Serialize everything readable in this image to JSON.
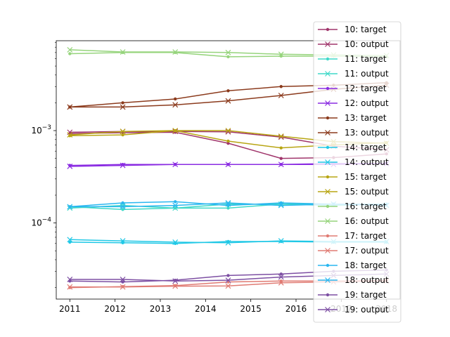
{
  "chart_data": {
    "type": "line",
    "title": "",
    "xlabel": "",
    "ylabel": "",
    "x_scale": "linear",
    "y_scale": "log",
    "xlim": [
      2010.7,
      2018.3
    ],
    "ylim": [
      1.5e-05,
      0.0094
    ],
    "grid": false,
    "legend_position": "right",
    "x_ticks": [
      2011,
      2012,
      2013,
      2014,
      2015,
      2016,
      2017,
      2018
    ],
    "x_tick_labels": [
      "2011",
      "2012",
      "2013",
      "2014",
      "2015",
      "2016",
      "2017",
      "2018"
    ],
    "y_ticks": [
      0.0001,
      0.001
    ],
    "y_tick_labels": [
      {
        "base": "10",
        "exp": "−4"
      },
      {
        "base": "10",
        "exp": "−3"
      }
    ],
    "x": [
      2011.0,
      2012.17,
      2013.33,
      2014.5,
      2015.67,
      2016.83,
      2018.0
    ],
    "series": [
      {
        "name": "10: target",
        "color": "#a0356b",
        "marker": "dot",
        "values": [
          0.00093,
          0.00095,
          0.00096,
          0.00073,
          0.0005,
          0.00051,
          0.00056
        ]
      },
      {
        "name": "10: output",
        "color": "#a0356b",
        "marker": "x",
        "values": [
          0.00096,
          0.00098,
          0.00098,
          0.00097,
          0.00085,
          0.00068,
          0.00062
        ]
      },
      {
        "name": "11: target",
        "color": "#3fd9c8",
        "marker": "dot",
        "values": [
          0.00015,
          0.00014,
          0.000145,
          0.000145,
          0.00016,
          0.000155,
          0.00016
        ]
      },
      {
        "name": "11: output",
        "color": "#3fd9c8",
        "marker": "x",
        "values": [
          0.000145,
          0.000155,
          0.000145,
          0.00016,
          0.00016,
          0.00016,
          0.000155
        ]
      },
      {
        "name": "12: target",
        "color": "#8a2be2",
        "marker": "dot",
        "values": [
          0.00042,
          0.00043,
          0.00043,
          0.00043,
          0.00043,
          0.00044,
          0.00044
        ]
      },
      {
        "name": "12: output",
        "color": "#8a2be2",
        "marker": "x",
        "values": [
          0.00041,
          0.00042,
          0.00043,
          0.00043,
          0.00043,
          0.00043,
          0.00044
        ]
      },
      {
        "name": "13: target",
        "color": "#8b3a1c",
        "marker": "dot",
        "values": [
          0.0018,
          0.002,
          0.0022,
          0.0027,
          0.003,
          0.0031,
          0.0033
        ]
      },
      {
        "name": "13: output",
        "color": "#8b3a1c",
        "marker": "x",
        "values": [
          0.0018,
          0.0018,
          0.0019,
          0.0021,
          0.0024,
          0.0028,
          0.0031
        ]
      },
      {
        "name": "14: target",
        "color": "#20c8e6",
        "marker": "dot",
        "values": [
          6.2e-05,
          6.1e-05,
          6e-05,
          6.3e-05,
          6.3e-05,
          6.2e-05,
          6.2e-05
        ]
      },
      {
        "name": "14: output",
        "color": "#20c8e6",
        "marker": "x",
        "values": [
          6.6e-05,
          6.4e-05,
          6.2e-05,
          6.1e-05,
          6.4e-05,
          6.3e-05,
          6.3e-05
        ]
      },
      {
        "name": "15: target",
        "color": "#b8a513",
        "marker": "dot",
        "values": [
          0.00088,
          0.0009,
          0.001,
          0.00077,
          0.00065,
          0.0007,
          0.00074
        ]
      },
      {
        "name": "15: output",
        "color": "#b8a513",
        "marker": "x",
        "values": [
          0.0009,
          0.00098,
          0.001,
          0.001,
          0.00087,
          0.00076,
          0.00073
        ]
      },
      {
        "name": "16: target",
        "color": "#96d47c",
        "marker": "dot",
        "values": [
          0.0068,
          0.007,
          0.007,
          0.0063,
          0.0064,
          0.0064,
          0.0063
        ]
      },
      {
        "name": "16: output",
        "color": "#96d47c",
        "marker": "x",
        "values": [
          0.0075,
          0.0071,
          0.0071,
          0.007,
          0.0067,
          0.0066,
          0.0065
        ]
      },
      {
        "name": "17: target",
        "color": "#e07b73",
        "marker": "dot",
        "values": [
          2e-05,
          2.05e-05,
          2.1e-05,
          2.3e-05,
          2.35e-05,
          2.35e-05,
          2.4e-05
        ]
      },
      {
        "name": "17: output",
        "color": "#e07b73",
        "marker": "x",
        "values": [
          2.03e-05,
          2.03e-05,
          2.07e-05,
          2.08e-05,
          2.25e-05,
          2.3e-05,
          2.35e-05
        ]
      },
      {
        "name": "18: target",
        "color": "#2ab7f0",
        "marker": "dot",
        "values": [
          0.00015,
          0.000165,
          0.00017,
          0.000155,
          0.000165,
          0.00016,
          0.00016
        ]
      },
      {
        "name": "18: output",
        "color": "#2ab7f0",
        "marker": "x",
        "values": [
          0.00015,
          0.00015,
          0.000155,
          0.000165,
          0.000155,
          0.00016,
          0.000155
        ]
      },
      {
        "name": "19: target",
        "color": "#7d4fa3",
        "marker": "dot",
        "values": [
          2.35e-05,
          2.3e-05,
          2.4e-05,
          2.7e-05,
          2.8e-05,
          3e-05,
          3.1e-05
        ]
      },
      {
        "name": "19: output",
        "color": "#7d4fa3",
        "marker": "x",
        "values": [
          2.45e-05,
          2.45e-05,
          2.35e-05,
          2.4e-05,
          2.6e-05,
          2.7e-05,
          2.8e-05
        ]
      }
    ]
  }
}
